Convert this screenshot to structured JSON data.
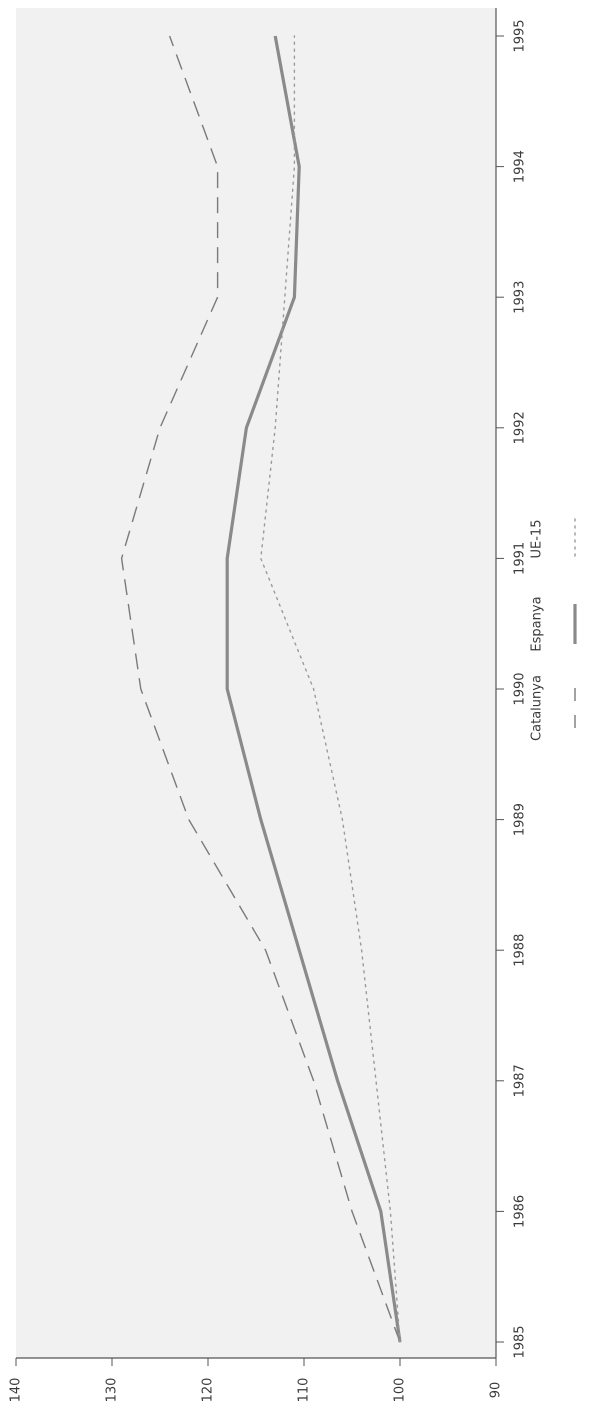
{
  "chart_data": {
    "type": "line",
    "title": "",
    "xlabel": "",
    "ylabel": "",
    "orientation": "rotated-90-clockwise",
    "x": [
      1985,
      1986,
      1987,
      1988,
      1989,
      1990,
      1991,
      1992,
      1993,
      1994,
      1995
    ],
    "xlim": [
      1985,
      1995
    ],
    "ylim": [
      90,
      140
    ],
    "yticks": [
      90,
      100,
      110,
      120,
      130,
      140
    ],
    "xtick_labels": [
      "1985",
      "1986",
      "1987",
      "1988",
      "1989",
      "1990",
      "1991",
      "1992",
      "1993",
      "1994",
      "1995"
    ],
    "ytick_labels": [
      "90",
      "100",
      "110",
      "120",
      "130",
      "140"
    ],
    "grid": false,
    "legend_position": "right",
    "colors": {
      "background": "#f1f1f1",
      "axis": "#555555",
      "Catalunya": "#7a7a7a",
      "Espanya": "#8a8a8a",
      "UE-15": "#9a9a9a"
    },
    "series": [
      {
        "name": "Catalunya",
        "style": "dashed",
        "values": [
          100,
          105,
          109,
          114,
          122,
          127,
          129,
          125,
          119,
          119,
          124
        ]
      },
      {
        "name": "Espanya",
        "style": "solid",
        "values": [
          100,
          102,
          106.5,
          110.5,
          114.5,
          118,
          118,
          116,
          111,
          110.5,
          113
        ]
      },
      {
        "name": "UE-15",
        "style": "dotted",
        "values": [
          100,
          101,
          102.5,
          104,
          106,
          109,
          114.5,
          113,
          112,
          111,
          111
        ]
      }
    ]
  }
}
